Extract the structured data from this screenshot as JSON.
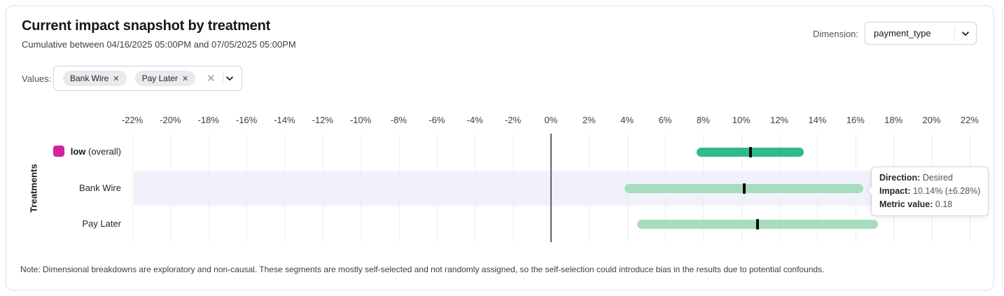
{
  "header": {
    "title": "Current impact snapshot by treatment",
    "subtitle": "Cumulative between 04/16/2025 05:00PM and 07/05/2025 05:00PM"
  },
  "dimension": {
    "label": "Dimension:",
    "value": "payment_type"
  },
  "values_filter": {
    "label": "Values:",
    "chips": [
      "Bank Wire",
      "Pay Later"
    ],
    "chip_remove_glyph": "✕",
    "clear_glyph": "✕"
  },
  "chart_data": {
    "type": "bar",
    "subtype": "horizontal-interval",
    "ylabel": "Treatments",
    "xlim": [
      -22,
      22
    ],
    "grid": true,
    "x_ticks": [
      "-22%",
      "-20%",
      "-18%",
      "-16%",
      "-14%",
      "-12%",
      "-10%",
      "-8%",
      "-6%",
      "-4%",
      "-2%",
      "0%",
      "2%",
      "4%",
      "6%",
      "8%",
      "10%",
      "12%",
      "14%",
      "16%",
      "18%",
      "20%",
      "22%"
    ],
    "rows": [
      {
        "label": "low",
        "label_suffix": "(overall)",
        "label_bold": true,
        "legend_color": "#d3219f",
        "bar_color": "#30b98b",
        "impact_pct": 10.48,
        "margin_pct": 2.82,
        "highlighted": false
      },
      {
        "label": "Bank Wire",
        "label_suffix": "",
        "label_bold": false,
        "legend_color": "",
        "bar_color": "#a8dcc1",
        "impact_pct": 10.14,
        "margin_pct": 6.28,
        "highlighted": true
      },
      {
        "label": "Pay Later",
        "label_suffix": "",
        "label_bold": false,
        "legend_color": "",
        "bar_color": "#a8dcc1",
        "impact_pct": 10.85,
        "margin_pct": 6.33,
        "highlighted": false
      }
    ]
  },
  "tooltip": {
    "lines": [
      {
        "label": "Direction:",
        "value": "Desired"
      },
      {
        "label": "Impact:",
        "value": "10.14% (±6.28%)"
      },
      {
        "label": "Metric value:",
        "value": "0.18"
      }
    ]
  },
  "note": "Note: Dimensional breakdowns are exploratory and non-causal. These segments are mostly self-selected and not randomly assigned, so the self-selection could introduce bias in the results due to potential confounds.",
  "colors": {
    "accent_green_dark": "#30b98b",
    "accent_green_light": "#a8dcc1",
    "legend_magenta": "#d3219f",
    "row_highlight": "#f1f1fb"
  }
}
